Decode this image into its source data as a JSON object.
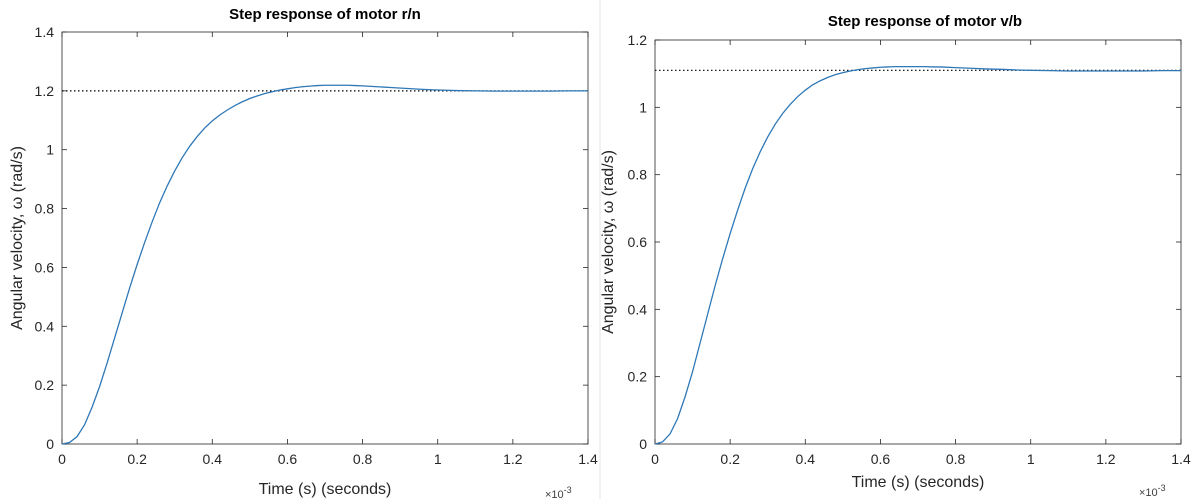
{
  "chart_data": [
    {
      "type": "line",
      "title": "Step response of motor r/n",
      "xlabel": "Time (s) (seconds)",
      "ylabel": "Angular velocity, ω (rad/s)",
      "x_exponent_label": "×10",
      "x_exponent_power": "-3",
      "xlim": [
        0,
        1.4
      ],
      "ylim": [
        0,
        1.4
      ],
      "xticks": [
        "0",
        "0.2",
        "0.4",
        "0.6",
        "0.8",
        "1",
        "1.2",
        "1.4"
      ],
      "yticks": [
        "0",
        "0.2",
        "0.4",
        "0.6",
        "0.8",
        "1",
        "1.2",
        "1.4"
      ],
      "reference_line": {
        "y": 1.2,
        "style": "dotted",
        "color": "#000000"
      },
      "series": [
        {
          "color": "#2e78b7",
          "x": [
            0,
            0.02,
            0.04,
            0.06,
            0.08,
            0.1,
            0.12,
            0.14,
            0.16,
            0.18,
            0.2,
            0.22,
            0.24,
            0.26,
            0.28,
            0.3,
            0.32,
            0.34,
            0.36,
            0.38,
            0.4,
            0.42,
            0.44,
            0.46,
            0.48,
            0.5,
            0.52,
            0.54,
            0.56,
            0.58,
            0.6,
            0.62,
            0.64,
            0.66,
            0.68,
            0.7,
            0.72,
            0.74,
            0.76,
            0.78,
            0.8,
            0.84,
            0.88,
            0.92,
            0.96,
            1.0,
            1.05,
            1.1,
            1.15,
            1.2,
            1.25,
            1.3,
            1.35,
            1.4
          ],
          "y": [
            0,
            0.005,
            0.025,
            0.065,
            0.125,
            0.195,
            0.275,
            0.36,
            0.445,
            0.53,
            0.61,
            0.685,
            0.755,
            0.82,
            0.877,
            0.928,
            0.973,
            1.012,
            1.045,
            1.074,
            1.098,
            1.118,
            1.135,
            1.15,
            1.163,
            1.174,
            1.183,
            1.191,
            1.197,
            1.203,
            1.207,
            1.211,
            1.214,
            1.216,
            1.218,
            1.219,
            1.219,
            1.219,
            1.219,
            1.218,
            1.217,
            1.214,
            1.211,
            1.208,
            1.205,
            1.203,
            1.201,
            1.2,
            1.199,
            1.199,
            1.199,
            1.199,
            1.2,
            1.2
          ]
        }
      ]
    },
    {
      "type": "line",
      "title": "Step response of motor v/b",
      "xlabel": "Time (s) (seconds)",
      "ylabel": "Angular velocity, ω (rad/s)",
      "x_exponent_label": "×10",
      "x_exponent_power": "-3",
      "xlim": [
        0,
        1.4
      ],
      "ylim": [
        0,
        1.2
      ],
      "xticks": [
        "0",
        "0.2",
        "0.4",
        "0.6",
        "0.8",
        "1",
        "1.2",
        "1.4"
      ],
      "yticks": [
        "0",
        "0.2",
        "0.4",
        "0.6",
        "0.8",
        "1",
        "1.2"
      ],
      "reference_line": {
        "y": 1.11,
        "style": "dotted",
        "color": "#000000"
      },
      "series": [
        {
          "color": "#2e78b7",
          "x": [
            0,
            0.02,
            0.04,
            0.06,
            0.08,
            0.1,
            0.12,
            0.14,
            0.16,
            0.18,
            0.2,
            0.22,
            0.24,
            0.26,
            0.28,
            0.3,
            0.32,
            0.34,
            0.36,
            0.38,
            0.4,
            0.42,
            0.44,
            0.46,
            0.48,
            0.5,
            0.52,
            0.54,
            0.56,
            0.58,
            0.6,
            0.62,
            0.64,
            0.66,
            0.68,
            0.7,
            0.72,
            0.74,
            0.76,
            0.8,
            0.84,
            0.88,
            0.92,
            0.96,
            1.0,
            1.05,
            1.1,
            1.15,
            1.2,
            1.25,
            1.3,
            1.35,
            1.4
          ],
          "y": [
            0,
            0.006,
            0.03,
            0.075,
            0.14,
            0.215,
            0.3,
            0.385,
            0.47,
            0.55,
            0.625,
            0.695,
            0.76,
            0.818,
            0.868,
            0.912,
            0.95,
            0.982,
            1.009,
            1.032,
            1.051,
            1.067,
            1.079,
            1.089,
            1.097,
            1.103,
            1.108,
            1.112,
            1.115,
            1.117,
            1.119,
            1.12,
            1.121,
            1.121,
            1.121,
            1.121,
            1.121,
            1.12,
            1.12,
            1.118,
            1.116,
            1.114,
            1.113,
            1.111,
            1.11,
            1.109,
            1.108,
            1.108,
            1.108,
            1.108,
            1.108,
            1.109,
            1.109
          ]
        }
      ]
    }
  ]
}
